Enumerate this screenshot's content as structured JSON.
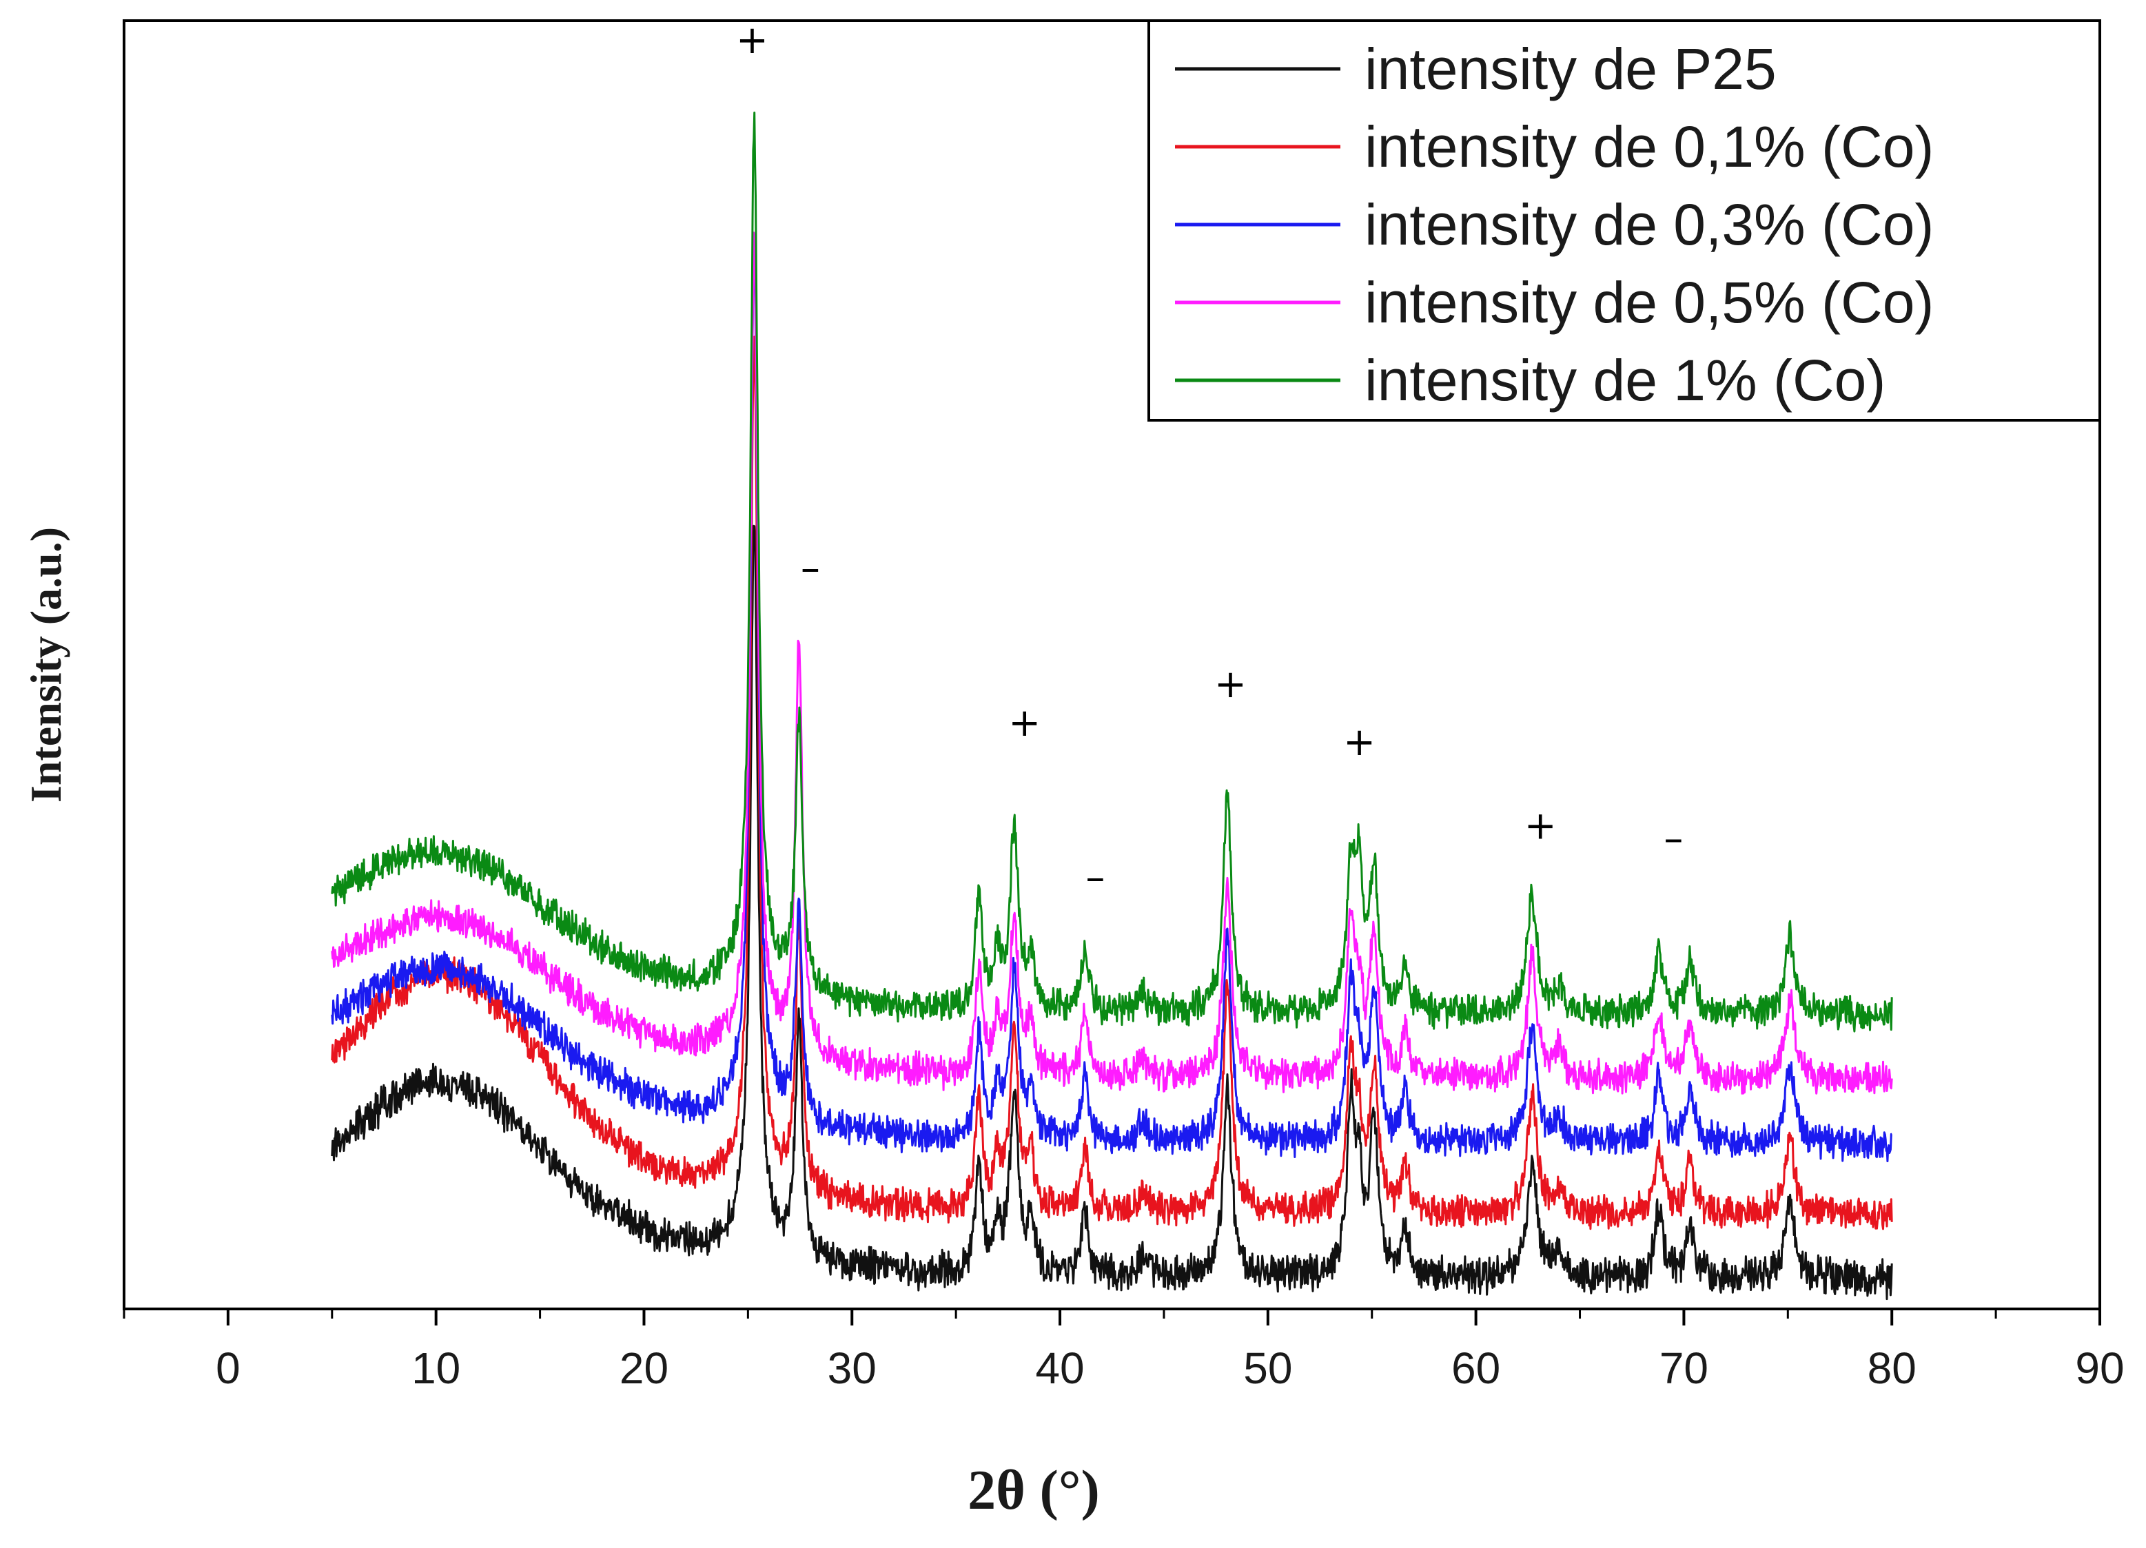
{
  "chart_data": {
    "type": "line",
    "title": "",
    "xlabel": "2θ (°)",
    "ylabel": "Intensity (a.u.)",
    "xlim": [
      -5,
      90
    ],
    "ylim": [
      0,
      100
    ],
    "xticks": [
      0,
      10,
      20,
      30,
      40,
      50,
      60,
      70,
      80,
      90
    ],
    "x_range": [
      5,
      80
    ],
    "grid": false,
    "legend_position": "top-right",
    "series": [
      {
        "name": "intensity de P25",
        "color": "#111111",
        "offset": 0,
        "noise": 1.1,
        "halo": {
          "center": 10.5,
          "width": 4.5,
          "amplitude": 11
        },
        "baseline": {
          "x": [
            5,
            23,
            24.8,
            28.5,
            35,
            80
          ],
          "y": [
            7.5,
            4.5,
            5.5,
            3.5,
            2.6,
            2.3
          ]
        },
        "peaks": [
          {
            "x": 25.3,
            "h": 56,
            "w": 0.22
          },
          {
            "x": 27.45,
            "h": 18,
            "w": 0.2
          },
          {
            "x": 36.1,
            "h": 9,
            "w": 0.2
          },
          {
            "x": 37.0,
            "h": 4,
            "w": 0.2
          },
          {
            "x": 37.8,
            "h": 14,
            "w": 0.24
          },
          {
            "x": 38.6,
            "h": 4,
            "w": 0.2
          },
          {
            "x": 41.2,
            "h": 5,
            "w": 0.2
          },
          {
            "x": 44.0,
            "h": 1.5,
            "w": 0.25
          },
          {
            "x": 48.05,
            "h": 15,
            "w": 0.24
          },
          {
            "x": 54.0,
            "h": 13,
            "w": 0.24
          },
          {
            "x": 54.4,
            "h": 6,
            "w": 0.2
          },
          {
            "x": 55.1,
            "h": 12,
            "w": 0.24
          },
          {
            "x": 56.6,
            "h": 3.5,
            "w": 0.2
          },
          {
            "x": 62.7,
            "h": 9,
            "w": 0.28
          },
          {
            "x": 64.0,
            "h": 2,
            "w": 0.25
          },
          {
            "x": 68.8,
            "h": 5,
            "w": 0.25
          },
          {
            "x": 70.3,
            "h": 4,
            "w": 0.25
          },
          {
            "x": 75.1,
            "h": 6,
            "w": 0.28
          }
        ]
      },
      {
        "name": "intensity de 0,1% (Co)",
        "color": "#e8141e",
        "offset": 5,
        "noise": 1.0,
        "halo": {
          "center": 10.5,
          "width": 4.5,
          "amplitude": 14
        },
        "baseline": {
          "x": [
            5,
            23,
            24.8,
            28.5,
            35,
            80
          ],
          "y": [
            8,
            4.5,
            5.5,
            3.5,
            2.6,
            2.3
          ]
        },
        "peaks": [
          {
            "x": 25.3,
            "h": 65,
            "w": 0.22
          },
          {
            "x": 27.45,
            "h": 20,
            "w": 0.2
          },
          {
            "x": 36.1,
            "h": 9,
            "w": 0.2
          },
          {
            "x": 37.0,
            "h": 4,
            "w": 0.2
          },
          {
            "x": 37.8,
            "h": 14,
            "w": 0.24
          },
          {
            "x": 38.6,
            "h": 4,
            "w": 0.2
          },
          {
            "x": 41.2,
            "h": 5,
            "w": 0.2
          },
          {
            "x": 44.0,
            "h": 1.5,
            "w": 0.25
          },
          {
            "x": 48.05,
            "h": 18,
            "w": 0.24
          },
          {
            "x": 54.0,
            "h": 12,
            "w": 0.24
          },
          {
            "x": 54.4,
            "h": 5,
            "w": 0.2
          },
          {
            "x": 55.1,
            "h": 11,
            "w": 0.24
          },
          {
            "x": 56.6,
            "h": 3.5,
            "w": 0.2
          },
          {
            "x": 62.7,
            "h": 9,
            "w": 0.28
          },
          {
            "x": 64.0,
            "h": 2,
            "w": 0.25
          },
          {
            "x": 68.8,
            "h": 5,
            "w": 0.25
          },
          {
            "x": 70.3,
            "h": 4,
            "w": 0.25
          },
          {
            "x": 75.1,
            "h": 6,
            "w": 0.28
          }
        ]
      },
      {
        "name": "intensity de 0,3% (Co)",
        "color": "#1a1af0",
        "offset": 10.5,
        "noise": 1.0,
        "halo": {
          "center": 10.5,
          "width": 4.5,
          "amplitude": 9
        },
        "baseline": {
          "x": [
            5,
            23,
            24.8,
            28.5,
            35,
            80
          ],
          "y": [
            8,
            4.5,
            5.5,
            3.5,
            2.6,
            2.3
          ]
        },
        "peaks": [
          {
            "x": 25.3,
            "h": 66,
            "w": 0.22
          },
          {
            "x": 27.45,
            "h": 16,
            "w": 0.2
          },
          {
            "x": 36.1,
            "h": 8,
            "w": 0.2
          },
          {
            "x": 37.0,
            "h": 4,
            "w": 0.2
          },
          {
            "x": 37.8,
            "h": 13,
            "w": 0.24
          },
          {
            "x": 38.6,
            "h": 4,
            "w": 0.2
          },
          {
            "x": 41.2,
            "h": 5,
            "w": 0.2
          },
          {
            "x": 44.0,
            "h": 1.5,
            "w": 0.25
          },
          {
            "x": 48.05,
            "h": 16,
            "w": 0.24
          },
          {
            "x": 54.0,
            "h": 12,
            "w": 0.24
          },
          {
            "x": 54.4,
            "h": 5,
            "w": 0.2
          },
          {
            "x": 55.1,
            "h": 11,
            "w": 0.24
          },
          {
            "x": 56.6,
            "h": 3.5,
            "w": 0.2
          },
          {
            "x": 62.7,
            "h": 9,
            "w": 0.28
          },
          {
            "x": 64.0,
            "h": 2,
            "w": 0.25
          },
          {
            "x": 68.8,
            "h": 5,
            "w": 0.25
          },
          {
            "x": 70.3,
            "h": 4,
            "w": 0.25
          },
          {
            "x": 75.1,
            "h": 6,
            "w": 0.28
          }
        ]
      },
      {
        "name": "intensity de 0,5% (Co)",
        "color": "#ff1cff",
        "offset": 15.5,
        "noise": 1.0,
        "halo": {
          "center": 10.5,
          "width": 4.5,
          "amplitude": 8
        },
        "baseline": {
          "x": [
            5,
            23,
            24.8,
            28.5,
            35,
            80
          ],
          "y": [
            8,
            4.5,
            5.5,
            3.5,
            2.6,
            2.3
          ]
        },
        "peaks": [
          {
            "x": 25.3,
            "h": 62,
            "w": 0.22
          },
          {
            "x": 27.45,
            "h": 32,
            "w": 0.2
          },
          {
            "x": 36.1,
            "h": 8,
            "w": 0.2
          },
          {
            "x": 37.0,
            "h": 4,
            "w": 0.2
          },
          {
            "x": 37.8,
            "h": 12,
            "w": 0.24
          },
          {
            "x": 38.6,
            "h": 4,
            "w": 0.2
          },
          {
            "x": 41.2,
            "h": 4.5,
            "w": 0.2
          },
          {
            "x": 44.0,
            "h": 1.5,
            "w": 0.25
          },
          {
            "x": 48.05,
            "h": 15,
            "w": 0.24
          },
          {
            "x": 54.0,
            "h": 12,
            "w": 0.24
          },
          {
            "x": 54.4,
            "h": 5,
            "w": 0.2
          },
          {
            "x": 55.1,
            "h": 11,
            "w": 0.24
          },
          {
            "x": 56.6,
            "h": 3.5,
            "w": 0.2
          },
          {
            "x": 62.7,
            "h": 9,
            "w": 0.28
          },
          {
            "x": 64.0,
            "h": 2,
            "w": 0.25
          },
          {
            "x": 68.8,
            "h": 5,
            "w": 0.25
          },
          {
            "x": 70.3,
            "h": 4,
            "w": 0.25
          },
          {
            "x": 75.1,
            "h": 6,
            "w": 0.28
          }
        ]
      },
      {
        "name": "intensity de 1% (Co)",
        "color": "#0a8a14",
        "offset": 20.5,
        "noise": 1.0,
        "halo": {
          "center": 10.5,
          "width": 4.5,
          "amplitude": 8
        },
        "baseline": {
          "x": [
            5,
            23,
            24.8,
            28.5,
            35,
            80
          ],
          "y": [
            8,
            4.5,
            5.5,
            3.5,
            2.6,
            2.3
          ]
        },
        "peaks": [
          {
            "x": 25.3,
            "h": 66,
            "w": 0.22
          },
          {
            "x": 27.45,
            "h": 21,
            "w": 0.2
          },
          {
            "x": 36.1,
            "h": 9,
            "w": 0.2
          },
          {
            "x": 37.0,
            "h": 4,
            "w": 0.2
          },
          {
            "x": 37.8,
            "h": 14,
            "w": 0.24
          },
          {
            "x": 38.6,
            "h": 4,
            "w": 0.2
          },
          {
            "x": 41.2,
            "h": 5,
            "w": 0.2
          },
          {
            "x": 44.0,
            "h": 1.5,
            "w": 0.25
          },
          {
            "x": 48.05,
            "h": 17,
            "w": 0.24
          },
          {
            "x": 54.0,
            "h": 11,
            "w": 0.24
          },
          {
            "x": 54.4,
            "h": 10,
            "w": 0.2
          },
          {
            "x": 55.1,
            "h": 11,
            "w": 0.24
          },
          {
            "x": 56.6,
            "h": 3.5,
            "w": 0.2
          },
          {
            "x": 62.7,
            "h": 9,
            "w": 0.28
          },
          {
            "x": 64.0,
            "h": 2,
            "w": 0.25
          },
          {
            "x": 68.8,
            "h": 5,
            "w": 0.25
          },
          {
            "x": 70.3,
            "h": 4,
            "w": 0.25
          },
          {
            "x": 75.1,
            "h": 6,
            "w": 0.28
          }
        ]
      }
    ],
    "annotations": [
      {
        "text": "+",
        "x": 25.2,
        "y": 97.5
      },
      {
        "text": "–",
        "x": 28.0,
        "y": 56.5
      },
      {
        "text": "+",
        "x": 38.3,
        "y": 44.5
      },
      {
        "text": "–",
        "x": 41.7,
        "y": 32.5
      },
      {
        "text": "+",
        "x": 48.2,
        "y": 47.5
      },
      {
        "text": "+",
        "x": 54.4,
        "y": 43.0
      },
      {
        "text": "+",
        "x": 63.1,
        "y": 36.5
      },
      {
        "text": "–",
        "x": 69.5,
        "y": 35.5
      }
    ]
  }
}
